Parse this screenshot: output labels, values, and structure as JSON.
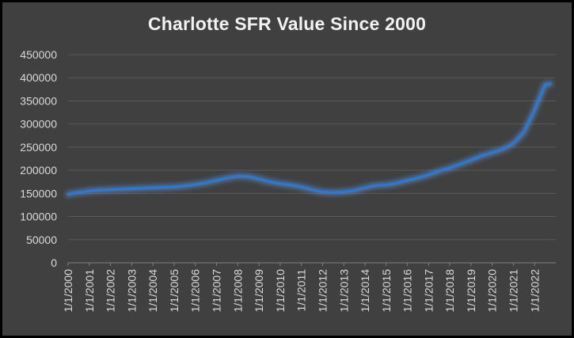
{
  "chart_data": {
    "type": "line",
    "title": "Charlotte SFR Value Since 2000",
    "xlabel": "",
    "ylabel": "",
    "ylim": [
      0,
      450000
    ],
    "y_ticks": [
      "0",
      "50000",
      "100000",
      "150000",
      "200000",
      "250000",
      "300000",
      "350000",
      "400000",
      "450000"
    ],
    "x_tick_labels": [
      "1/1/2000",
      "1/1/2001",
      "1/1/2002",
      "1/1/2003",
      "1/1/2004",
      "1/1/2005",
      "1/1/2006",
      "1/1/2007",
      "1/1/2008",
      "1/1/2009",
      "1/1/2010",
      "1/1/2011",
      "1/1/2012",
      "1/1/2013",
      "1/1/2014",
      "1/1/2015",
      "1/1/2016",
      "1/1/2017",
      "1/1/2018",
      "1/1/2019",
      "1/1/2020",
      "1/1/2021",
      "1/1/2022"
    ],
    "grid": true,
    "legend": "none",
    "colors": {
      "background": "#404040",
      "grid": "#595959",
      "line": "#2e78d0",
      "glow": "#5aa0ff",
      "text": "#d9d9d9",
      "title": "#f2f2f2"
    },
    "series": [
      {
        "x": [
          "2000-01-01",
          "2000-07-01",
          "2001-01-01",
          "2001-07-01",
          "2002-01-01",
          "2002-07-01",
          "2003-01-01",
          "2003-07-01",
          "2004-01-01",
          "2004-07-01",
          "2005-01-01",
          "2005-07-01",
          "2006-01-01",
          "2006-07-01",
          "2007-01-01",
          "2007-07-01",
          "2008-01-01",
          "2008-07-01",
          "2009-01-01",
          "2009-07-01",
          "2010-01-01",
          "2010-07-01",
          "2011-01-01",
          "2011-07-01",
          "2012-01-01",
          "2012-07-01",
          "2013-01-01",
          "2013-07-01",
          "2014-01-01",
          "2014-07-01",
          "2015-01-01",
          "2015-07-01",
          "2016-01-01",
          "2016-07-01",
          "2017-01-01",
          "2017-07-01",
          "2018-01-01",
          "2018-07-01",
          "2019-01-01",
          "2019-07-01",
          "2020-01-01",
          "2020-07-01",
          "2021-01-01",
          "2021-07-01",
          "2022-01-01",
          "2022-04-01",
          "2022-07-01",
          "2022-10-01"
        ],
        "values": [
          148000,
          152000,
          155000,
          157000,
          158000,
          159000,
          160000,
          161000,
          162000,
          163000,
          164000,
          166000,
          169000,
          173000,
          178000,
          183000,
          187000,
          186000,
          181000,
          175000,
          171000,
          168000,
          164000,
          158000,
          153000,
          152000,
          153000,
          156000,
          162000,
          167000,
          168000,
          172000,
          178000,
          183000,
          190000,
          198000,
          205000,
          213000,
          222000,
          231000,
          238000,
          245000,
          258000,
          282000,
          330000,
          358000,
          385000,
          387000
        ]
      }
    ]
  }
}
